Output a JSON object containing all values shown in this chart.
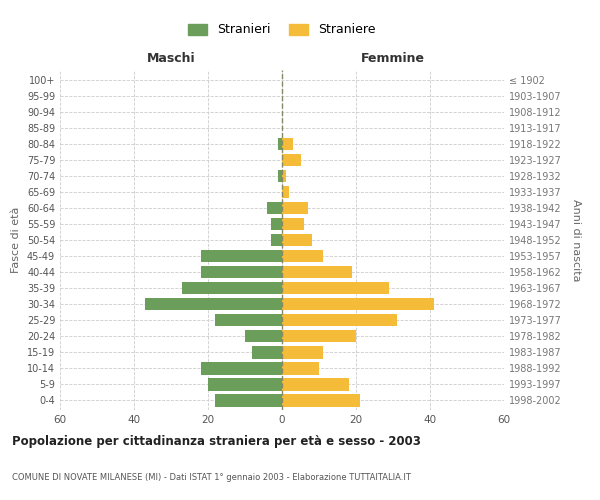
{
  "age_groups": [
    "0-4",
    "5-9",
    "10-14",
    "15-19",
    "20-24",
    "25-29",
    "30-34",
    "35-39",
    "40-44",
    "45-49",
    "50-54",
    "55-59",
    "60-64",
    "65-69",
    "70-74",
    "75-79",
    "80-84",
    "85-89",
    "90-94",
    "95-99",
    "100+"
  ],
  "birth_years": [
    "1998-2002",
    "1993-1997",
    "1988-1992",
    "1983-1987",
    "1978-1982",
    "1973-1977",
    "1968-1972",
    "1963-1967",
    "1958-1962",
    "1953-1957",
    "1948-1952",
    "1943-1947",
    "1938-1942",
    "1933-1937",
    "1928-1932",
    "1923-1927",
    "1918-1922",
    "1913-1917",
    "1908-1912",
    "1903-1907",
    "≤ 1902"
  ],
  "maschi": [
    18,
    20,
    22,
    8,
    10,
    18,
    37,
    27,
    22,
    22,
    3,
    3,
    4,
    0,
    1,
    0,
    1,
    0,
    0,
    0,
    0
  ],
  "femmine": [
    21,
    18,
    10,
    11,
    20,
    31,
    41,
    29,
    19,
    11,
    8,
    6,
    7,
    2,
    1,
    5,
    3,
    0,
    0,
    0,
    0
  ],
  "color_maschi": "#6a9e5a",
  "color_femmine": "#f5bc3a",
  "title": "Popolazione per cittadinanza straniera per età e sesso - 2003",
  "subtitle": "COMUNE DI NOVATE MILANESE (MI) - Dati ISTAT 1° gennaio 2003 - Elaborazione TUTTAITALIA.IT",
  "xlabel_left": "Maschi",
  "xlabel_right": "Femmine",
  "ylabel_left": "Fasce di età",
  "ylabel_right": "Anni di nascita",
  "legend_maschi": "Stranieri",
  "legend_femmine": "Straniere",
  "xlim": 60,
  "background_color": "#ffffff",
  "grid_color": "#cccccc"
}
